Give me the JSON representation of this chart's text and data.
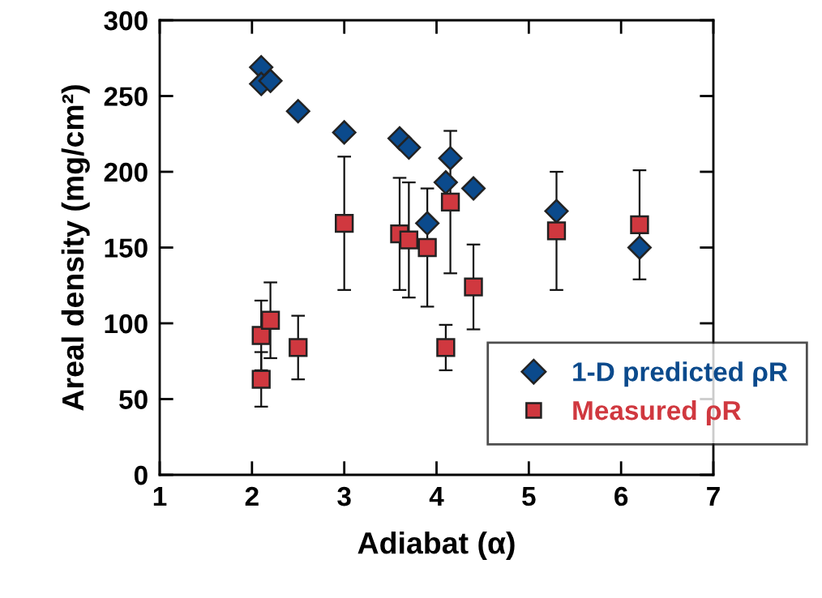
{
  "chart_data": {
    "type": "scatter",
    "xlabel": "Adiabat (α)",
    "ylabel": "Areal density (mg/cm²)",
    "xlim": [
      1,
      7
    ],
    "xticks": [
      1,
      2,
      3,
      4,
      5,
      6,
      7
    ],
    "ylim": [
      0,
      300
    ],
    "yticks": [
      0,
      50,
      100,
      150,
      200,
      250,
      300
    ],
    "grid": false,
    "legend": "bottom right",
    "series": [
      {
        "name": "1-D predicted ρR",
        "color": "#0b4a8c",
        "marker": "diamond",
        "x": [
          2.1,
          2.1,
          2.2,
          2.5,
          3.0,
          3.6,
          3.7,
          4.15,
          4.1,
          4.4,
          3.9,
          5.3,
          6.2
        ],
        "values": [
          269,
          258,
          260,
          240,
          226,
          222,
          216,
          209,
          193,
          189,
          166,
          174,
          150
        ]
      },
      {
        "name": "Measured ρR",
        "color": "#d0383f",
        "marker": "square",
        "x": [
          2.1,
          2.1,
          2.2,
          2.5,
          3.0,
          3.6,
          3.7,
          3.9,
          4.15,
          4.1,
          4.4,
          5.3,
          6.2
        ],
        "values": [
          63,
          92,
          102,
          84,
          166,
          159,
          155,
          150,
          180,
          84,
          124,
          161,
          165
        ],
        "errors": [
          18,
          23,
          25,
          21,
          44,
          37,
          38,
          39,
          47,
          15,
          28,
          39,
          36
        ]
      }
    ]
  }
}
